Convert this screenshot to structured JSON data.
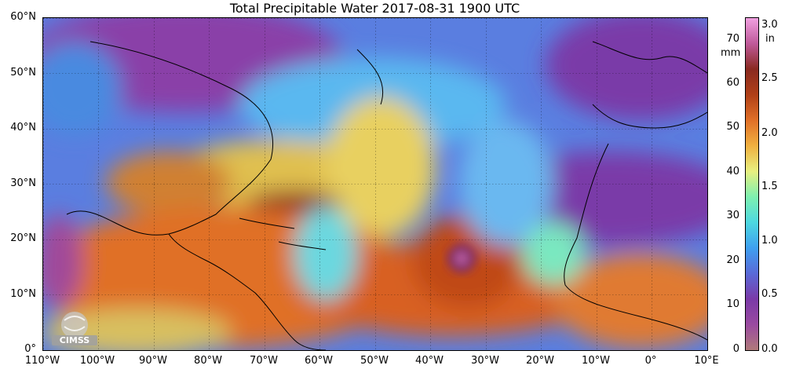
{
  "title": "Total Precipitable Water  2017-08-31 1900 UTC",
  "lat_labels": [
    "60°N",
    "50°N",
    "40°N",
    "30°N",
    "20°N",
    "10°N",
    "0°"
  ],
  "lon_labels": [
    "110°W",
    "100°W",
    "90°W",
    "80°W",
    "70°W",
    "60°W",
    "50°W",
    "40°W",
    "30°W",
    "20°W",
    "10°W",
    "0°",
    "10°E"
  ],
  "colorbar": {
    "unit_mm": "mm",
    "unit_in": "in",
    "mm_ticks": [
      "70",
      "60",
      "50",
      "40",
      "30",
      "20",
      "10",
      "0"
    ],
    "in_ticks": [
      "3.0",
      "2.5",
      "2.0",
      "1.5",
      "1.0",
      "0.5",
      "0.0"
    ],
    "colors": [
      "#b07a7a",
      "#9a4aa0",
      "#7a3aa8",
      "#5a6ad8",
      "#3fa0f0",
      "#4ed8e0",
      "#7ef0b0",
      "#e8f080",
      "#f0b040",
      "#e07028",
      "#b04018",
      "#8a2a20",
      "#c05a9a",
      "#f0a0e0"
    ]
  },
  "logo_text": "CIMSS"
}
